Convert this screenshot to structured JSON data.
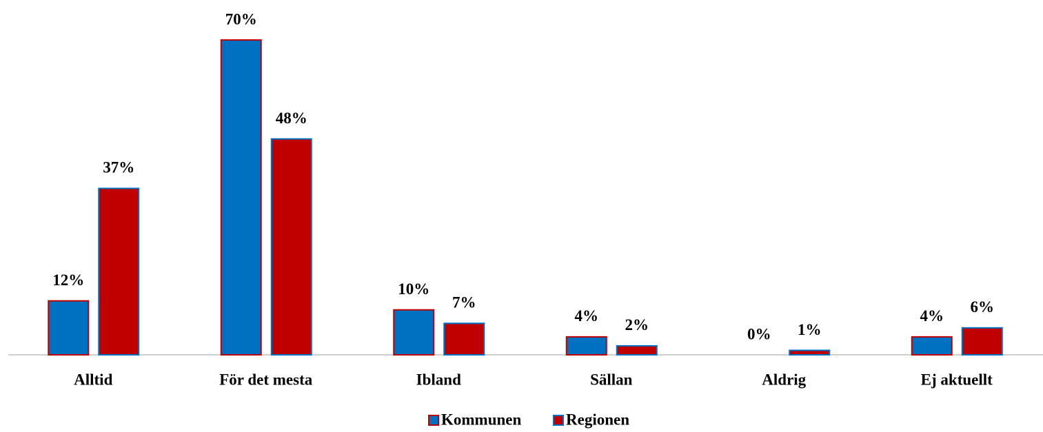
{
  "chart_data": {
    "type": "bar",
    "categories": [
      "Alltid",
      "För det mesta",
      "Ibland",
      "Sällan",
      "Aldrig",
      "Ej aktuellt"
    ],
    "series": [
      {
        "name": "Kommunen",
        "color": "#0070c0",
        "edgecolor": "#c00000",
        "values": [
          12,
          70,
          10,
          4,
          0,
          4
        ],
        "value_labels": [
          "12%",
          "70%",
          "10%",
          "4%",
          "0%",
          "4%"
        ]
      },
      {
        "name": "Regionen",
        "color": "#c00000",
        "edgecolor": "#0070c0",
        "values": [
          37,
          48,
          7,
          2,
          1,
          6
        ],
        "value_labels": [
          "37%",
          "48%",
          "7%",
          "2%",
          "1%",
          "6%"
        ]
      }
    ],
    "ylim": [
      0,
      70
    ],
    "legend": "bottom"
  }
}
